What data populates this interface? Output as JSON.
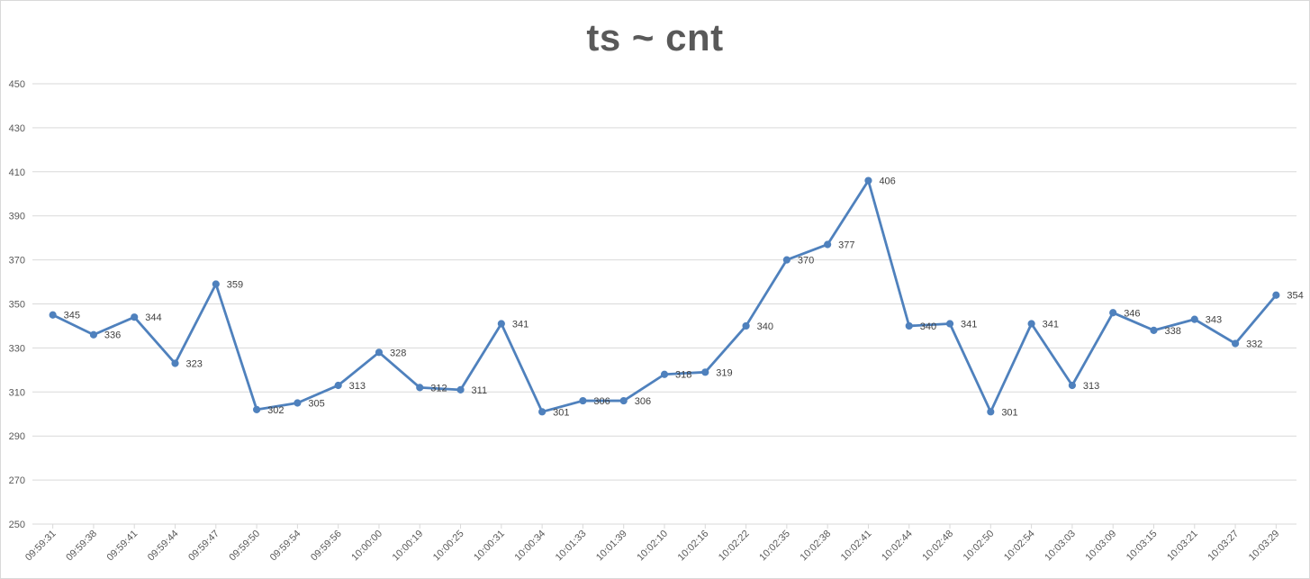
{
  "chart_data": {
    "type": "line",
    "title": "ts ~ cnt",
    "xlabel": "",
    "ylabel": "",
    "ylim": [
      250,
      450
    ],
    "yticks": [
      250,
      270,
      290,
      310,
      330,
      350,
      370,
      390,
      410,
      430,
      450
    ],
    "grid": true,
    "legend": "none",
    "x": [
      "09:59:31",
      "09:59:38",
      "09:59:41",
      "09:59:44",
      "09:59:47",
      "09:59:50",
      "09:59:54",
      "09:59:56",
      "10:00:00",
      "10:00:19",
      "10:00:25",
      "10:00:31",
      "10:00:34",
      "10:01:33",
      "10:01:39",
      "10:02:10",
      "10:02:16",
      "10:02:22",
      "10:02:35",
      "10:02:38",
      "10:02:41",
      "10:02:44",
      "10:02:48",
      "10:02:50",
      "10:02:54",
      "10:03:03",
      "10:03:09",
      "10:03:15",
      "10:03:21",
      "10:03:27",
      "10:03:29"
    ],
    "series": [
      {
        "values": [
          345,
          336,
          344,
          323,
          359,
          302,
          305,
          313,
          328,
          312,
          311,
          341,
          301,
          306,
          306,
          318,
          319,
          340,
          370,
          377,
          406,
          340,
          341,
          301,
          341,
          313,
          346,
          338,
          343,
          332,
          354
        ],
        "color": "#4f81bd"
      }
    ]
  }
}
